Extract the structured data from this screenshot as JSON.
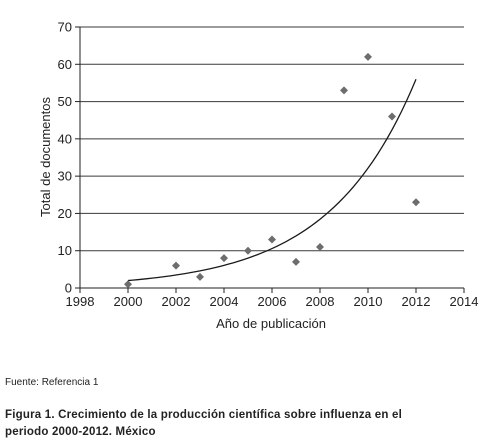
{
  "chart_data": {
    "type": "scatter",
    "title": "",
    "xlabel": "Año de publicación",
    "ylabel": "Total de documentos",
    "xlim": [
      1998,
      2014
    ],
    "ylim": [
      0,
      70
    ],
    "xticks": [
      "1998",
      "2000",
      "2002",
      "2004",
      "2006",
      "2008",
      "2010",
      "2012",
      "2014"
    ],
    "yticks": [
      "0",
      "10",
      "20",
      "30",
      "40",
      "50",
      "60",
      "70"
    ],
    "grid": "horizontal",
    "points": [
      {
        "x": 2000,
        "y": 1
      },
      {
        "x": 2002,
        "y": 6
      },
      {
        "x": 2003,
        "y": 3
      },
      {
        "x": 2004,
        "y": 8
      },
      {
        "x": 2005,
        "y": 10
      },
      {
        "x": 2006,
        "y": 13
      },
      {
        "x": 2007,
        "y": 7
      },
      {
        "x": 2008,
        "y": 11
      },
      {
        "x": 2009,
        "y": 53
      },
      {
        "x": 2010,
        "y": 62
      },
      {
        "x": 2011,
        "y": 46
      },
      {
        "x": 2012,
        "y": 23
      }
    ],
    "trendline": {
      "type": "exponential",
      "x_range": [
        2000,
        2012
      ],
      "y_start": 2,
      "y_end": 56
    },
    "marker_color": "#6d6d6d",
    "line_color": "#1a1a1a"
  },
  "source": "Fuente: Referencia 1",
  "caption": {
    "line1": "Figura 1. Crecimiento de la producción científica sobre influenza en el",
    "line2": "periodo 2000-2012. México"
  }
}
